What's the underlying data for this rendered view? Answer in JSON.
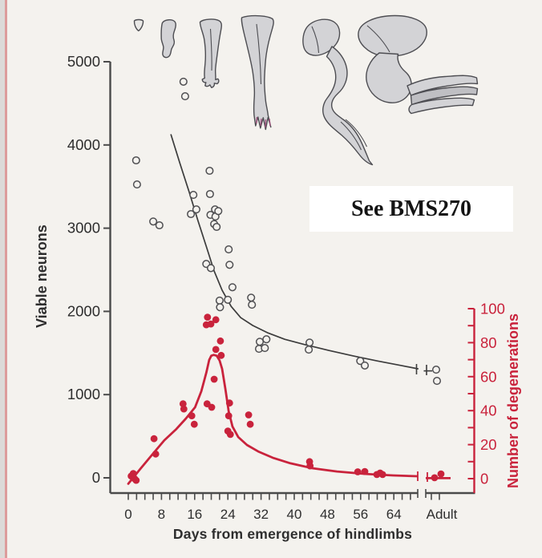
{
  "page": {
    "background": "#f4f2ee",
    "left_border_color": "#dd9c9c"
  },
  "annotation": {
    "text": "See BMS270"
  },
  "colors": {
    "red": "#c9233c",
    "curve_black": "#3c3c3c",
    "axis_gray": "#4a4a4a",
    "text_dark": "#2e2e2e",
    "limb_fill": "#d3d3d6",
    "limb_outline": "#4d4d52",
    "toe_magenta": "#a0527d"
  },
  "chart_data": {
    "type": "scatter",
    "title": "",
    "description": "Neuron counts (open circles, left axis) and degenerating neurons (red dots, right axis) versus days from emergence of hindlimbs; six hindlimb developmental stages drawn across the top.",
    "x_axis": {
      "label": "Days from emergence of hindlimbs",
      "tick_labels": [
        "0",
        "8",
        "16",
        "24",
        "32",
        "40",
        "48",
        "56",
        "64"
      ],
      "tick_days": [
        0,
        8,
        16,
        24,
        32,
        40,
        48,
        56,
        64
      ],
      "adult_label": "Adult",
      "minor_tick_days": 2,
      "day_range": [
        0,
        68
      ],
      "axis_break_after_day": 68
    },
    "y_axis_left": {
      "label": "Viable neurons",
      "ticks": [
        0,
        1000,
        2000,
        3000,
        4000,
        5000
      ],
      "range": [
        0,
        5000
      ]
    },
    "y_axis_right": {
      "label": "Number of degenerations",
      "ticks": [
        0,
        20,
        40,
        60,
        80,
        100
      ],
      "minor_tick_every": 10,
      "range": [
        0,
        100
      ]
    },
    "series": [
      {
        "name": "Viable neurons (counts)",
        "marker": "open-circle",
        "axis": "left",
        "points": [
          [
            1.9,
            3815
          ],
          [
            2.1,
            3525
          ],
          [
            6.0,
            3080
          ],
          [
            7.5,
            3035
          ],
          [
            13.3,
            4760
          ],
          [
            13.7,
            4585
          ],
          [
            15.1,
            3170
          ],
          [
            15.7,
            3400
          ],
          [
            16.4,
            3225
          ],
          [
            18.8,
            2570
          ],
          [
            19.6,
            3690
          ],
          [
            19.7,
            3410
          ],
          [
            19.9,
            2520
          ],
          [
            19.8,
            3160
          ],
          [
            20.9,
            3225
          ],
          [
            21.0,
            3140
          ],
          [
            20.7,
            3050
          ],
          [
            21.3,
            3015
          ],
          [
            21.7,
            3205
          ],
          [
            22.0,
            2130
          ],
          [
            22.1,
            2050
          ],
          [
            24.0,
            2140
          ],
          [
            24.2,
            2745
          ],
          [
            24.4,
            2560
          ],
          [
            25.1,
            2290
          ],
          [
            29.6,
            2165
          ],
          [
            29.8,
            2080
          ],
          [
            31.5,
            1550
          ],
          [
            31.7,
            1635
          ],
          [
            32.9,
            1560
          ],
          [
            33.3,
            1665
          ],
          [
            43.5,
            1540
          ],
          [
            43.7,
            1625
          ],
          [
            55.9,
            1405
          ],
          [
            57.0,
            1350
          ]
        ],
        "adult_points": [
          [
            -7,
            1300
          ],
          [
            -6,
            1165
          ]
        ]
      },
      {
        "name": "Viable neurons (trend)",
        "type": "curve",
        "axis": "left",
        "points": [
          [
            10.3,
            4122
          ],
          [
            12.4,
            3785
          ],
          [
            14.7,
            3430
          ],
          [
            16.8,
            3090
          ],
          [
            18.8,
            2780
          ],
          [
            20.7,
            2485
          ],
          [
            22.6,
            2255
          ],
          [
            24.8,
            2060
          ],
          [
            27.1,
            1925
          ],
          [
            30.0,
            1830
          ],
          [
            33.5,
            1745
          ],
          [
            37.7,
            1665
          ],
          [
            42.6,
            1600
          ],
          [
            48.4,
            1530
          ],
          [
            54.2,
            1465
          ],
          [
            60.0,
            1405
          ],
          [
            65.8,
            1350
          ],
          [
            69.8,
            1310
          ]
        ],
        "adult_dash_value": 1285
      },
      {
        "name": "Degenerations (counts)",
        "marker": "filled-dot",
        "axis": "right",
        "points": [
          [
            0.7,
            1.5
          ],
          [
            1.2,
            3
          ],
          [
            1.5,
            0
          ],
          [
            1.9,
            -1
          ],
          [
            6.2,
            23.5
          ],
          [
            6.6,
            14.5
          ],
          [
            13.2,
            44
          ],
          [
            13.4,
            41
          ],
          [
            15.3,
            37
          ],
          [
            15.9,
            32
          ],
          [
            18.8,
            90.5
          ],
          [
            19.1,
            95
          ],
          [
            19.9,
            91
          ],
          [
            21.1,
            93.5
          ],
          [
            19.0,
            44
          ],
          [
            20.1,
            42
          ],
          [
            20.7,
            58.5
          ],
          [
            21.1,
            76
          ],
          [
            22.2,
            81
          ],
          [
            22.4,
            72.5
          ],
          [
            24.0,
            28
          ],
          [
            24.2,
            37
          ],
          [
            24.4,
            44.5
          ],
          [
            24.6,
            26
          ],
          [
            29.0,
            37.5
          ],
          [
            29.4,
            32
          ],
          [
            43.7,
            10
          ],
          [
            43.8,
            7.5
          ],
          [
            55.3,
            4
          ],
          [
            57.0,
            4.2
          ],
          [
            59.9,
            2.4
          ],
          [
            60.7,
            3.3
          ],
          [
            61.3,
            2.4
          ]
        ],
        "adult_points": [
          [
            -9,
            0.5
          ],
          [
            -1,
            2.8
          ]
        ]
      },
      {
        "name": "Degenerations (trend)",
        "type": "curve",
        "axis": "right",
        "points": [
          [
            0.0,
            -3
          ],
          [
            2.9,
            5.7
          ],
          [
            5.8,
            14.2
          ],
          [
            8.7,
            22.6
          ],
          [
            11.6,
            29.2
          ],
          [
            13.9,
            35.4
          ],
          [
            16.1,
            42
          ],
          [
            17.6,
            51.4
          ],
          [
            18.8,
            62.3
          ],
          [
            19.5,
            69.8
          ],
          [
            20.0,
            72.3
          ],
          [
            20.6,
            72.8
          ],
          [
            21.3,
            72.3
          ],
          [
            22.0,
            69.5
          ],
          [
            22.6,
            64.6
          ],
          [
            23.4,
            52.8
          ],
          [
            24.2,
            39.6
          ],
          [
            25.1,
            30.7
          ],
          [
            26.5,
            24.5
          ],
          [
            28.6,
            19.8
          ],
          [
            31.3,
            16
          ],
          [
            34.8,
            12.3
          ],
          [
            39.1,
            9
          ],
          [
            44.5,
            6.1
          ],
          [
            50.3,
            4.2
          ],
          [
            57.1,
            2.8
          ],
          [
            63.8,
            1.9
          ],
          [
            69.6,
            1.4
          ]
        ],
        "adult_segment_value": 0.3
      }
    ],
    "limb_stages_count": 6
  }
}
